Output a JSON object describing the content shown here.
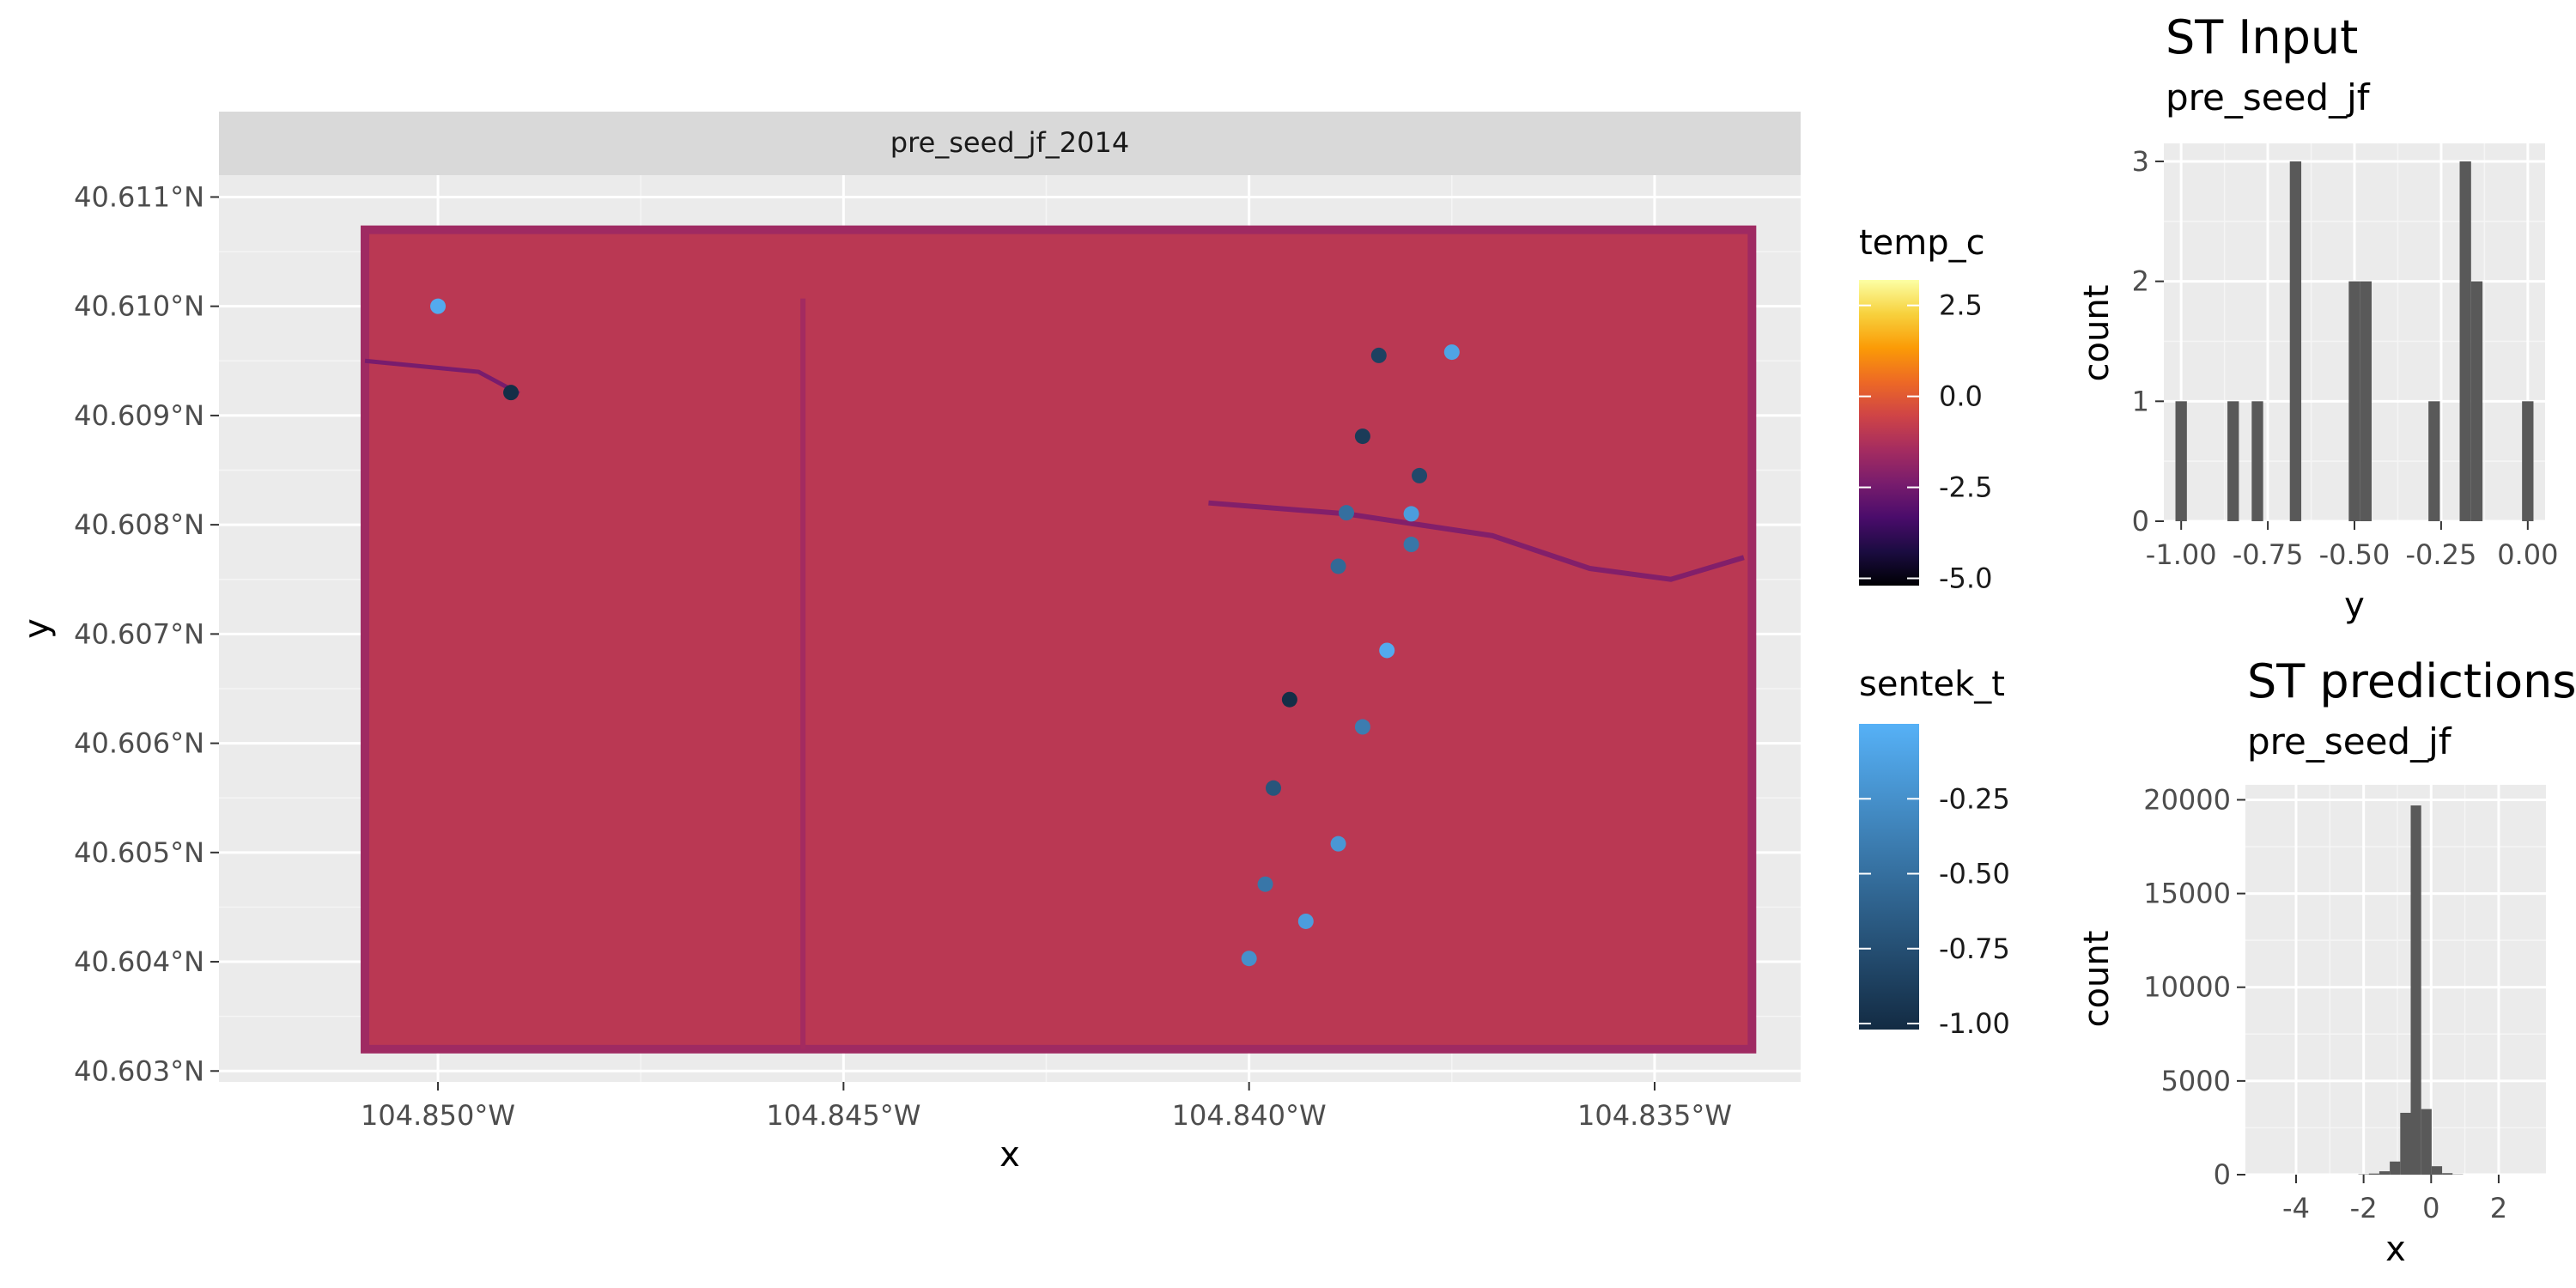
{
  "chart_data": [
    {
      "type": "heatmap",
      "facet_label": "pre_seed_jf_2014",
      "xlabel": "x",
      "ylabel": "y",
      "x_ticks": [
        "104.850°W",
        "104.845°W",
        "104.840°W",
        "104.835°W"
      ],
      "y_ticks": [
        "40.603°N",
        "40.604°N",
        "40.605°N",
        "40.606°N",
        "40.607°N",
        "40.608°N",
        "40.609°N",
        "40.610°N",
        "40.611°N"
      ],
      "xlim": [
        -104.8527,
        -104.8332
      ],
      "ylim": [
        40.6029,
        40.6112
      ],
      "raster_extent": {
        "x": [
          -104.8509,
          -104.8338
        ],
        "y": [
          40.6032,
          40.6107
        ]
      },
      "raster_typical_value": -1.0,
      "legend_fill": {
        "title": "temp_c",
        "ticks": [
          "2.5",
          "0.0",
          "-2.5",
          "-5.0"
        ],
        "tick_values": [
          2.5,
          0.0,
          -2.5,
          -5.0
        ],
        "range": [
          -5.2,
          3.2
        ],
        "colors": [
          "#000004",
          "#1b0c41",
          "#4a0c6b",
          "#781c6d",
          "#a52c60",
          "#cf4446",
          "#ed6925",
          "#fb9b06",
          "#f7d13d",
          "#fcffa4"
        ]
      },
      "legend_color": {
        "title": "sentek_t",
        "ticks": [
          "-0.25",
          "-0.50",
          "-0.75",
          "-1.00"
        ],
        "tick_values": [
          -0.25,
          -0.5,
          -0.75,
          -1.0
        ],
        "range": [
          -1.02,
          0.0
        ],
        "colors": [
          "#132b43",
          "#56b1f7"
        ]
      },
      "points": [
        {
          "x": -104.85,
          "y": 40.61,
          "value": -0.05
        },
        {
          "x": -104.8491,
          "y": 40.60921,
          "value": -1.0
        },
        {
          "x": -104.8384,
          "y": 40.60955,
          "value": -0.85
        },
        {
          "x": -104.8375,
          "y": 40.60958,
          "value": -0.1
        },
        {
          "x": -104.8386,
          "y": 40.60881,
          "value": -0.9
        },
        {
          "x": -104.8379,
          "y": 40.60845,
          "value": -0.8
        },
        {
          "x": -104.8388,
          "y": 40.60811,
          "value": -0.5
        },
        {
          "x": -104.838,
          "y": 40.6081,
          "value": -0.15
        },
        {
          "x": -104.838,
          "y": 40.60782,
          "value": -0.45
        },
        {
          "x": -104.8389,
          "y": 40.60762,
          "value": -0.55
        },
        {
          "x": -104.8383,
          "y": 40.60685,
          "value": -0.05
        },
        {
          "x": -104.8395,
          "y": 40.6064,
          "value": -1.0
        },
        {
          "x": -104.8386,
          "y": 40.60615,
          "value": -0.4
        },
        {
          "x": -104.8397,
          "y": 40.60559,
          "value": -0.7
        },
        {
          "x": -104.8389,
          "y": 40.60508,
          "value": -0.2
        },
        {
          "x": -104.8398,
          "y": 40.60471,
          "value": -0.45
        },
        {
          "x": -104.8393,
          "y": 40.60437,
          "value": -0.15
        },
        {
          "x": -104.84,
          "y": 40.60403,
          "value": -0.25
        }
      ]
    },
    {
      "type": "bar",
      "title": "ST Input",
      "subtitle": "pre_seed_jf",
      "xlabel": "y",
      "ylabel": "count",
      "x_ticks": [
        "-1.00",
        "-0.75",
        "-0.50",
        "-0.25",
        "0.00"
      ],
      "x_tick_values": [
        -1.0,
        -0.75,
        -0.5,
        -0.25,
        0.0
      ],
      "y_ticks": [
        "0",
        "1",
        "2",
        "3"
      ],
      "y_tick_values": [
        0,
        1,
        2,
        3
      ],
      "xlim": [
        -1.05,
        0.05
      ],
      "ylim": [
        0,
        3.15
      ],
      "bin_width": 0.033,
      "bins": [
        {
          "x": -1.0,
          "count": 1
        },
        {
          "x": -0.85,
          "count": 1
        },
        {
          "x": -0.78,
          "count": 1
        },
        {
          "x": -0.67,
          "count": 3
        },
        {
          "x": -0.5,
          "count": 2
        },
        {
          "x": -0.467,
          "count": 2
        },
        {
          "x": -0.27,
          "count": 1
        },
        {
          "x": -0.18,
          "count": 3
        },
        {
          "x": -0.147,
          "count": 2
        },
        {
          "x": 0.0,
          "count": 1
        }
      ]
    },
    {
      "type": "bar",
      "title": "ST predictions",
      "subtitle": "pre_seed_jf",
      "xlabel": "x",
      "ylabel": "count",
      "x_ticks": [
        "-4",
        "-2",
        "0",
        "2"
      ],
      "x_tick_values": [
        -4,
        -2,
        0,
        2
      ],
      "y_ticks": [
        "0",
        "5000",
        "10000",
        "15000",
        "20000"
      ],
      "y_tick_values": [
        0,
        5000,
        10000,
        15000,
        20000
      ],
      "xlim": [
        -5.5,
        3.4
      ],
      "ylim": [
        0,
        20800
      ],
      "bin_width": 0.31,
      "bins": [
        {
          "x": -2.0,
          "count": 20
        },
        {
          "x": -1.69,
          "count": 60
        },
        {
          "x": -1.38,
          "count": 180
        },
        {
          "x": -1.07,
          "count": 700
        },
        {
          "x": -0.76,
          "count": 3300
        },
        {
          "x": -0.45,
          "count": 19700
        },
        {
          "x": -0.14,
          "count": 3500
        },
        {
          "x": 0.17,
          "count": 450
        },
        {
          "x": 0.48,
          "count": 80
        },
        {
          "x": 0.79,
          "count": 15
        }
      ]
    }
  ]
}
